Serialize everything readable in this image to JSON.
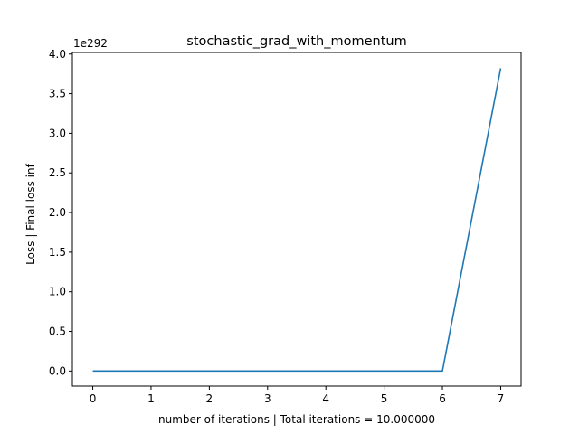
{
  "chart_data": {
    "type": "line",
    "title": "stochastic_grad_with_momentum",
    "xlabel": "number of iterations | Total iterations = 10.000000",
    "ylabel": "Loss | Final loss inf",
    "y_offset_label": "1e292",
    "xlim": [
      -0.35,
      7.35
    ],
    "ylim": [
      -0.19,
      4.02
    ],
    "y_scale_exponent": 292,
    "x_ticks": [
      0,
      1,
      2,
      3,
      4,
      5,
      6,
      7
    ],
    "x_tick_labels": [
      "0",
      "1",
      "2",
      "3",
      "4",
      "5",
      "6",
      "7"
    ],
    "y_ticks": [
      0.0,
      0.5,
      1.0,
      1.5,
      2.0,
      2.5,
      3.0,
      3.5,
      4.0
    ],
    "y_tick_labels": [
      "0.0",
      "0.5",
      "1.0",
      "1.5",
      "2.0",
      "2.5",
      "3.0",
      "3.5",
      "4.0"
    ],
    "grid": false,
    "series": [
      {
        "color": "#1f77b4",
        "x": [
          0,
          1,
          2,
          3,
          4,
          5,
          6,
          7
        ],
        "y": [
          0,
          0,
          0,
          0,
          0,
          0,
          0,
          3.82
        ]
      }
    ]
  }
}
